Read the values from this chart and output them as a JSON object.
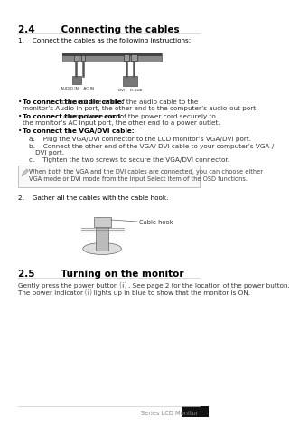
{
  "bg_color": "#ffffff",
  "section_title_24": "2.4        Connecting the cables",
  "section_title_25": "2.5        Turning on the monitor",
  "footer_text": "Series LCD Monitor",
  "step1_text": "1.    Connect the cables as the following instructions:",
  "step2_text": "2.    Gather all the cables with the cable hook.",
  "bullet1_bold": "To connect the audio cable:",
  "bullet1_rest": " connect one end of the audio cable to the",
  "bullet1_rest2": "monitor’s Audio-in port, the other end to the computer’s audio-out port.",
  "bullet2_bold": "To connect the power cord:",
  "bullet2_rest": " connect one end of the power cord securely to",
  "bullet2_rest2": "the monitor’s AC input port, the other end to a power outlet.",
  "bullet3_bold": "To connect the VGA/DVI cable:",
  "suba_text": "a.    Plug the VGA/DVI connector to the LCD monitor’s VGA/DVI port.",
  "subb_text": "b.    Connect the other end of the VGA/ DVI cable to your computer’s VGA /",
  "subb_text2": "DVI port.",
  "subc_text": "c.    Tighten the two screws to secure the VGA/DVI connector.",
  "note_text": "When both the VGA and the DVI cables are connected, you can choose either\nVGA mode or DVI mode from the Input Select item of the OSD functions.",
  "section25_body1": "Gently press the power button ⒤ . See page 2 for the location of the power button.",
  "section25_body2": "The power indicator ⒤ lights up in blue to show that the monitor is ON.",
  "title_color": "#000000",
  "body_color": "#333333",
  "note_color": "#444444",
  "line_color": "#cccccc",
  "footer_color": "#888888"
}
